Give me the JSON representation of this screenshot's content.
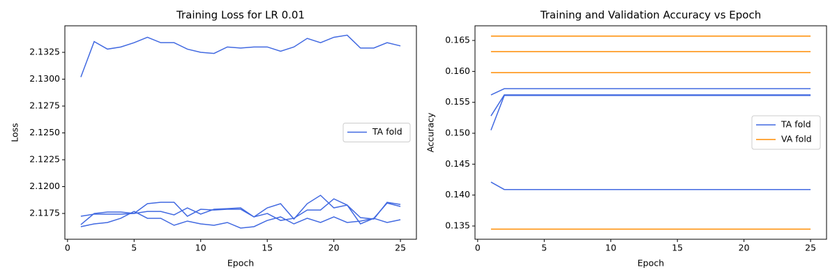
{
  "chart_data": [
    {
      "type": "line",
      "title": "Training Loss for LR 0.01",
      "xlabel": "Epoch",
      "ylabel": "Loss",
      "x": [
        1,
        2,
        3,
        4,
        5,
        6,
        7,
        8,
        9,
        10,
        11,
        12,
        13,
        14,
        15,
        16,
        17,
        18,
        19,
        20,
        21,
        22,
        23,
        24,
        25
      ],
      "xlim": [
        -0.2,
        26.2
      ],
      "xticks": [
        0,
        5,
        10,
        15,
        20,
        25
      ],
      "ylim": [
        2.1151,
        2.13497
      ],
      "yticks": [
        2.1175,
        {
          "value": 2.12,
          "label": "2.1200"
        },
        2.1225,
        {
          "value": 2.125,
          "label": "2.1250"
        },
        2.1275,
        {
          "value": 2.13,
          "label": "2.1300"
        },
        2.1325
      ],
      "legend": "center right",
      "series": [
        {
          "name": "TA fold",
          "color": "#4169e1",
          "values": [
            2.1302,
            2.1335,
            2.1328,
            2.133,
            2.1334,
            2.1339,
            2.1334,
            2.1334,
            2.1328,
            2.1325,
            2.1324,
            2.133,
            2.1329,
            2.133,
            2.133,
            2.1326,
            2.133,
            2.1338,
            2.1334,
            2.1339,
            2.1341,
            2.1329,
            2.1329,
            2.1334,
            2.1331
          ]
        },
        {
          "color": "#4169e1",
          "values": [
            2.11627,
            2.11653,
            2.11666,
            2.11705,
            2.11769,
            2.11705,
            2.11705,
            2.1164,
            2.11679,
            2.11653,
            2.1164,
            2.11666,
            2.11614,
            2.11627,
            2.11685,
            2.11718,
            2.11653,
            2.11705,
            2.11666,
            2.11718,
            2.11666,
            2.11679,
            2.11705,
            2.11666,
            2.11692
          ]
        },
        {
          "color": "#4169e1",
          "values": [
            2.11646,
            2.1175,
            2.11763,
            2.11763,
            2.1175,
            2.11769,
            2.11769,
            2.11737,
            2.11802,
            2.11744,
            2.11789,
            2.11795,
            2.11802,
            2.11718,
            2.1175,
            2.11685,
            2.11705,
            2.11782,
            2.11782,
            2.11886,
            2.11828,
            2.11653,
            2.11705,
            2.11847,
            2.11815
          ]
        },
        {
          "color": "#4169e1",
          "values": [
            2.11724,
            2.11744,
            2.11744,
            2.11744,
            2.1175,
            2.11841,
            2.11854,
            2.11854,
            2.11724,
            2.11789,
            2.11782,
            2.11789,
            2.11789,
            2.11718,
            2.11802,
            2.11841,
            2.11698,
            2.11841,
            2.11919,
            2.11802,
            2.11828,
            2.11711,
            2.11698,
            2.11854,
            2.11834
          ]
        }
      ]
    },
    {
      "type": "line",
      "title": "Training and Validation Accuracy vs Epoch",
      "xlabel": "Epoch",
      "ylabel": "Accuracy",
      "x": [
        1,
        2,
        3,
        4,
        5,
        6,
        7,
        8,
        9,
        10,
        11,
        12,
        13,
        14,
        15,
        16,
        17,
        18,
        19,
        20,
        21,
        22,
        23,
        24,
        25
      ],
      "xlim": [
        -0.2,
        26.2
      ],
      "xticks": [
        0,
        5,
        10,
        15,
        20,
        25
      ],
      "ylim": [
        0.13286,
        0.16737
      ],
      "yticks": [
        0.135,
        {
          "value": 0.14,
          "label": "0.140"
        },
        0.145,
        {
          "value": 0.15,
          "label": "0.150"
        },
        0.155,
        {
          "value": 0.16,
          "label": "0.160"
        },
        0.165
      ],
      "legend": "center right",
      "series": [
        {
          "name": "TA fold",
          "color": "#4169e1",
          "values": [
            0.1562,
            0.1572,
            0.1572,
            0.1572,
            0.1572,
            0.1572,
            0.1572,
            0.1572,
            0.1572,
            0.1572,
            0.1572,
            0.1572,
            0.1572,
            0.1572,
            0.1572,
            0.1572,
            0.1572,
            0.1572,
            0.1572,
            0.1572,
            0.1572,
            0.1572,
            0.1572,
            0.1572,
            0.1572
          ]
        },
        {
          "color": "#4169e1",
          "values": [
            0.1528,
            0.1562,
            0.1562,
            0.1562,
            0.1562,
            0.1562,
            0.1562,
            0.1562,
            0.1562,
            0.1562,
            0.1562,
            0.1562,
            0.1562,
            0.1562,
            0.1562,
            0.1562,
            0.1562,
            0.1562,
            0.1562,
            0.1562,
            0.1562,
            0.1562,
            0.1562,
            0.1562,
            0.1562
          ]
        },
        {
          "color": "#4169e1",
          "values": [
            0.1505,
            0.1561,
            0.1561,
            0.1561,
            0.1561,
            0.1561,
            0.1561,
            0.1561,
            0.1561,
            0.1561,
            0.1561,
            0.1561,
            0.1561,
            0.1561,
            0.1561,
            0.1561,
            0.1561,
            0.1561,
            0.1561,
            0.1561,
            0.1561,
            0.1561,
            0.1561,
            0.1561,
            0.1561
          ]
        },
        {
          "color": "#4169e1",
          "values": [
            0.1421,
            0.1409,
            0.1409,
            0.1409,
            0.1409,
            0.1409,
            0.1409,
            0.1409,
            0.1409,
            0.1409,
            0.1409,
            0.1409,
            0.1409,
            0.1409,
            0.1409,
            0.1409,
            0.1409,
            0.1409,
            0.1409,
            0.1409,
            0.1409,
            0.1409,
            0.1409,
            0.1409,
            0.1409
          ]
        },
        {
          "name": "VA fold",
          "color": "#ff8c00",
          "values": [
            0.1657,
            0.1657,
            0.1657,
            0.1657,
            0.1657,
            0.1657,
            0.1657,
            0.1657,
            0.1657,
            0.1657,
            0.1657,
            0.1657,
            0.1657,
            0.1657,
            0.1657,
            0.1657,
            0.1657,
            0.1657,
            0.1657,
            0.1657,
            0.1657,
            0.1657,
            0.1657,
            0.1657,
            0.1657
          ]
        },
        {
          "color": "#ff8c00",
          "values": [
            0.1632,
            0.1632,
            0.1632,
            0.1632,
            0.1632,
            0.1632,
            0.1632,
            0.1632,
            0.1632,
            0.1632,
            0.1632,
            0.1632,
            0.1632,
            0.1632,
            0.1632,
            0.1632,
            0.1632,
            0.1632,
            0.1632,
            0.1632,
            0.1632,
            0.1632,
            0.1632,
            0.1632,
            0.1632
          ]
        },
        {
          "color": "#ff8c00",
          "values": [
            0.1598,
            0.1598,
            0.1598,
            0.1598,
            0.1598,
            0.1598,
            0.1598,
            0.1598,
            0.1598,
            0.1598,
            0.1598,
            0.1598,
            0.1598,
            0.1598,
            0.1598,
            0.1598,
            0.1598,
            0.1598,
            0.1598,
            0.1598,
            0.1598,
            0.1598,
            0.1598,
            0.1598,
            0.1598
          ]
        },
        {
          "color": "#ff8c00",
          "values": [
            0.1345,
            0.1345,
            0.1345,
            0.1345,
            0.1345,
            0.1345,
            0.1345,
            0.1345,
            0.1345,
            0.1345,
            0.1345,
            0.1345,
            0.1345,
            0.1345,
            0.1345,
            0.1345,
            0.1345,
            0.1345,
            0.1345,
            0.1345,
            0.1345,
            0.1345,
            0.1345,
            0.1345,
            0.1345
          ]
        }
      ]
    }
  ]
}
